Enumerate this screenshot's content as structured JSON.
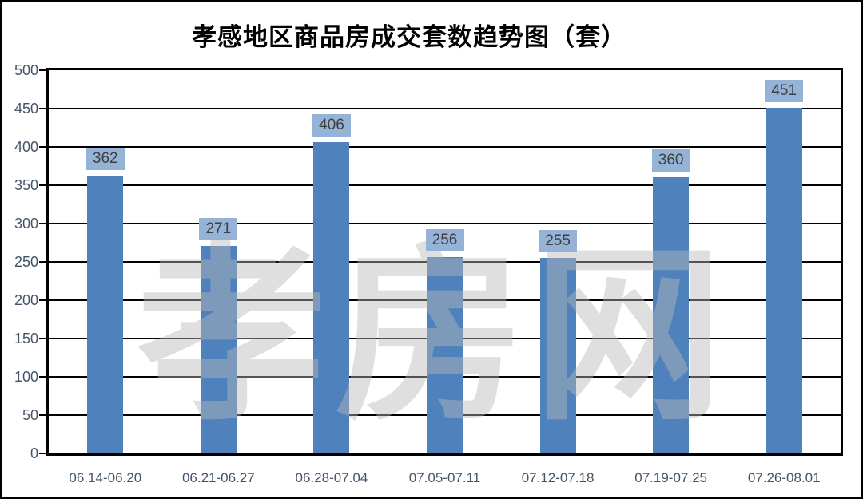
{
  "title": "孝感地区商品房成交套数趋势图（套）",
  "watermark": "孝房网",
  "chart_data": {
    "type": "bar",
    "title": "孝感地区商品房成交套数趋势图（套）",
    "categories": [
      "06.14-06.20",
      "06.21-06.27",
      "06.28-07.04",
      "07.05-07.11",
      "07.12-07.18",
      "07.19-07.25",
      "07.26-08.01"
    ],
    "values": [
      362,
      271,
      406,
      256,
      255,
      360,
      451
    ],
    "xlabel": "",
    "ylabel": "",
    "ylim": [
      0,
      500
    ],
    "ytick_step": 50,
    "grid": true,
    "legend": false,
    "bar_color": "#4f81bd",
    "value_label_bg": "#95b3d7",
    "value_label_text_color": "#3f3f3f",
    "axis_text_color": "#44546a",
    "gridline_color": "#000000",
    "watermark_text": "孝房网"
  }
}
